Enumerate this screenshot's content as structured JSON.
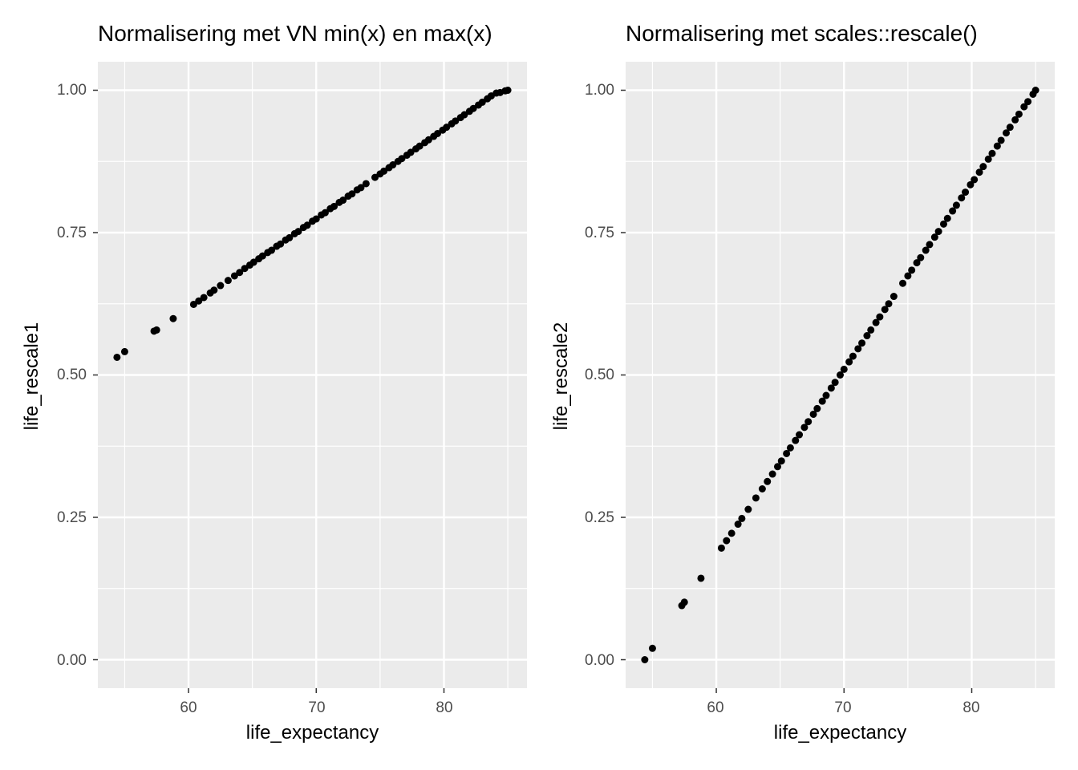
{
  "chart_data": [
    {
      "type": "scatter",
      "title": "Normalisering met VN min(x) en max(x)",
      "xlabel": "life_expectancy",
      "ylabel": "life_rescale1",
      "xlim": [
        52.9,
        86.5
      ],
      "ylim": [
        -0.05,
        1.05
      ],
      "xticks": [
        "60",
        "70",
        "80"
      ],
      "yticks": [
        "0.00",
        "0.25",
        "0.50",
        "0.75",
        "1.00"
      ],
      "grid": true,
      "point_color": "#000000",
      "series": [
        {
          "x": [
            54.4,
            55.0,
            57.3,
            57.5,
            58.8,
            60.4,
            60.8,
            61.2,
            61.7,
            62.0,
            62.5,
            63.1,
            63.6,
            64.0,
            64.4,
            64.8,
            65.1,
            65.5,
            65.8,
            66.2,
            66.5,
            66.9,
            67.2,
            67.6,
            67.9,
            68.3,
            68.6,
            69.0,
            69.3,
            69.7,
            70.0,
            70.4,
            70.7,
            71.1,
            71.4,
            71.8,
            72.1,
            72.5,
            72.8,
            73.2,
            73.5,
            73.9,
            74.6,
            75.0,
            75.3,
            75.7,
            76.0,
            76.4,
            76.7,
            77.1,
            77.4,
            77.8,
            78.1,
            78.5,
            78.8,
            79.2,
            79.5,
            79.9,
            80.2,
            80.6,
            80.9,
            81.3,
            81.6,
            82.0,
            82.3,
            82.7,
            83.0,
            83.4,
            83.7,
            84.1,
            84.4,
            84.8,
            85.0
          ],
          "y": [
            0.531,
            0.541,
            0.577,
            0.579,
            0.599,
            0.624,
            0.63,
            0.636,
            0.644,
            0.649,
            0.657,
            0.666,
            0.674,
            0.68,
            0.687,
            0.693,
            0.698,
            0.704,
            0.709,
            0.715,
            0.719,
            0.726,
            0.73,
            0.737,
            0.741,
            0.748,
            0.752,
            0.759,
            0.763,
            0.77,
            0.774,
            0.781,
            0.785,
            0.792,
            0.796,
            0.803,
            0.807,
            0.814,
            0.818,
            0.825,
            0.829,
            0.836,
            0.847,
            0.853,
            0.858,
            0.864,
            0.869,
            0.875,
            0.88,
            0.886,
            0.891,
            0.897,
            0.902,
            0.908,
            0.913,
            0.919,
            0.924,
            0.93,
            0.935,
            0.941,
            0.946,
            0.952,
            0.957,
            0.963,
            0.968,
            0.974,
            0.979,
            0.985,
            0.99,
            0.995,
            0.996,
            0.999,
            1.0
          ]
        }
      ]
    },
    {
      "type": "scatter",
      "title": "Normalisering met scales::rescale()",
      "xlabel": "life_expectancy",
      "ylabel": "life_rescale2",
      "xlim": [
        52.9,
        86.5
      ],
      "ylim": [
        -0.05,
        1.05
      ],
      "xticks": [
        "60",
        "70",
        "80"
      ],
      "yticks": [
        "0.00",
        "0.25",
        "0.50",
        "0.75",
        "1.00"
      ],
      "grid": true,
      "point_color": "#000000",
      "series": [
        {
          "x": [
            54.4,
            55.0,
            57.3,
            57.5,
            58.8,
            60.4,
            60.8,
            61.2,
            61.7,
            62.0,
            62.5,
            63.1,
            63.6,
            64.0,
            64.4,
            64.8,
            65.1,
            65.5,
            65.8,
            66.2,
            66.5,
            66.9,
            67.2,
            67.6,
            67.9,
            68.3,
            68.6,
            69.0,
            69.3,
            69.7,
            70.0,
            70.4,
            70.7,
            71.1,
            71.4,
            71.8,
            72.1,
            72.5,
            72.8,
            73.2,
            73.5,
            73.9,
            74.6,
            75.0,
            75.3,
            75.7,
            76.0,
            76.4,
            76.7,
            77.1,
            77.4,
            77.8,
            78.1,
            78.5,
            78.8,
            79.2,
            79.5,
            79.9,
            80.2,
            80.6,
            80.9,
            81.3,
            81.6,
            82.0,
            82.3,
            82.7,
            83.0,
            83.4,
            83.7,
            84.1,
            84.4,
            84.8,
            85.0
          ],
          "y": [
            0.0,
            0.02,
            0.095,
            0.101,
            0.143,
            0.196,
            0.209,
            0.222,
            0.238,
            0.248,
            0.264,
            0.284,
            0.3,
            0.313,
            0.326,
            0.339,
            0.349,
            0.362,
            0.372,
            0.385,
            0.395,
            0.408,
            0.418,
            0.431,
            0.441,
            0.454,
            0.464,
            0.477,
            0.487,
            0.5,
            0.51,
            0.523,
            0.533,
            0.546,
            0.556,
            0.569,
            0.579,
            0.592,
            0.602,
            0.615,
            0.625,
            0.638,
            0.661,
            0.674,
            0.684,
            0.697,
            0.706,
            0.719,
            0.729,
            0.742,
            0.752,
            0.765,
            0.775,
            0.788,
            0.798,
            0.811,
            0.821,
            0.834,
            0.843,
            0.856,
            0.866,
            0.879,
            0.889,
            0.902,
            0.912,
            0.925,
            0.935,
            0.948,
            0.958,
            0.971,
            0.98,
            0.993,
            1.0
          ]
        }
      ]
    }
  ]
}
